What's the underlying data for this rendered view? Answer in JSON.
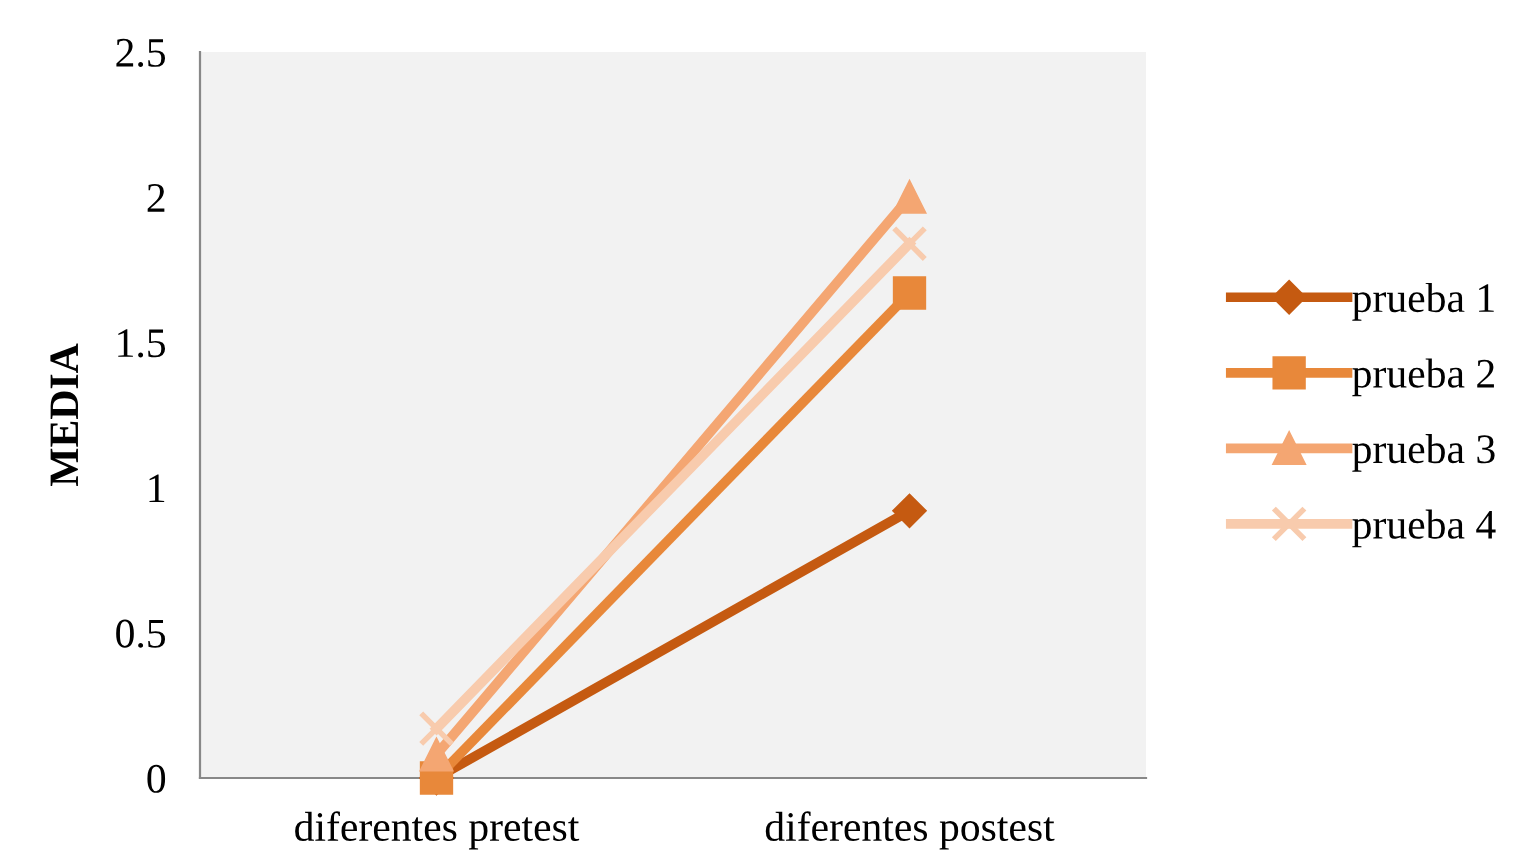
{
  "chart_data": {
    "type": "line",
    "ylabel": "MEDIA",
    "categories": [
      "diferentes pretest",
      "diferentes postest"
    ],
    "series": [
      {
        "name": "prueba 1",
        "color": "#c55a11",
        "marker": "diamond",
        "values": [
          0,
          0.92
        ]
      },
      {
        "name": "prueba 2",
        "color": "#e8883a",
        "marker": "square",
        "values": [
          0,
          1.67
        ]
      },
      {
        "name": "prueba 3",
        "color": "#f4a672",
        "marker": "triangle",
        "values": [
          0.08,
          2.0
        ]
      },
      {
        "name": "prueba 4",
        "color": "#f8cbad",
        "marker": "cross",
        "values": [
          0.17,
          1.84
        ]
      }
    ],
    "ylim": [
      0,
      2.5
    ],
    "yticks": [
      0,
      0.5,
      1,
      1.5,
      2,
      2.5
    ],
    "grid": false,
    "legend": "right",
    "line_style": "solid"
  }
}
